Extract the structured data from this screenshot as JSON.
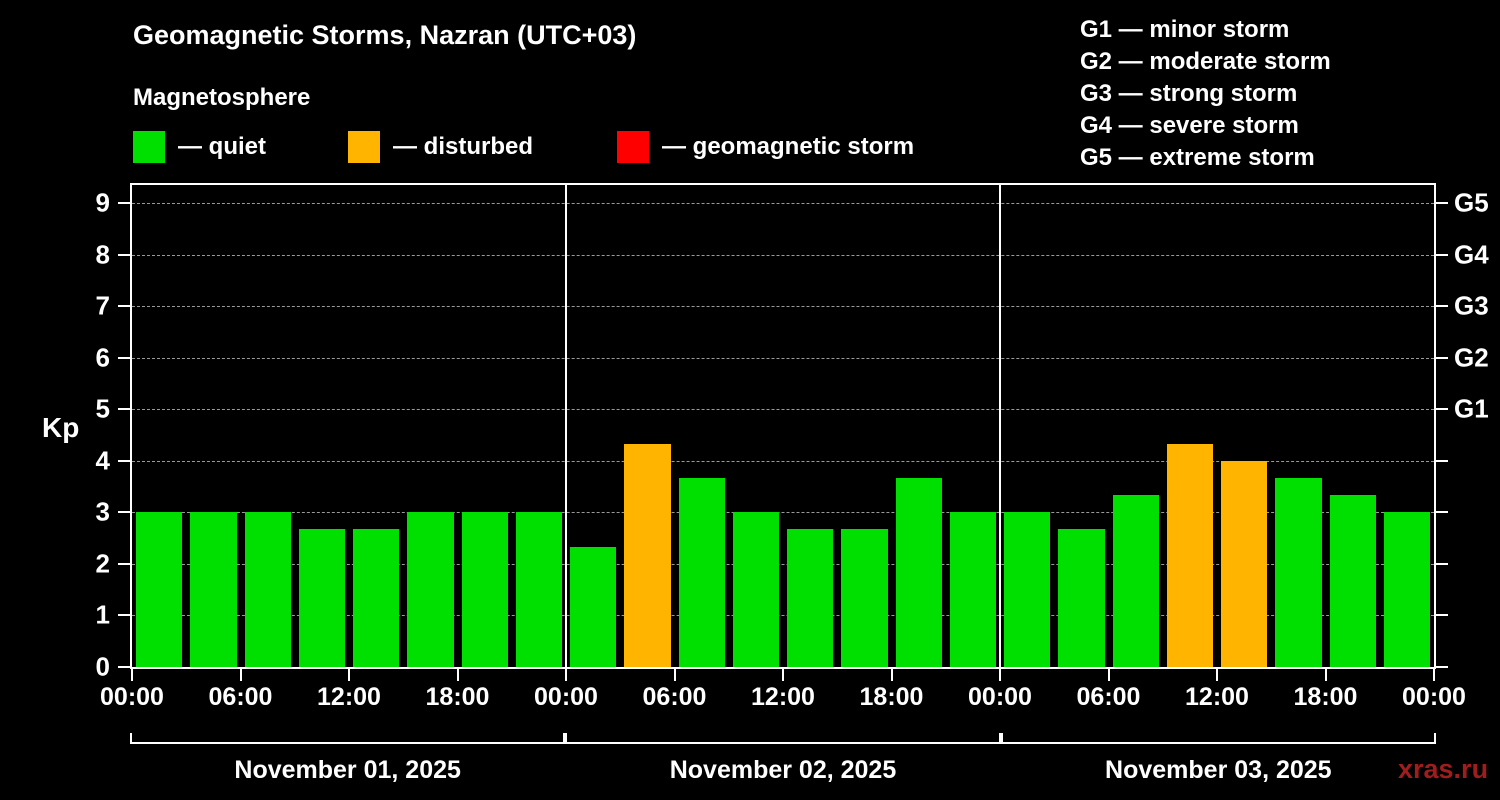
{
  "title": "Geomagnetic Storms, Nazran (UTC+03)",
  "subtitle": "Magnetosphere",
  "legend": {
    "items": [
      {
        "name": "quiet",
        "label": "— quiet",
        "color": "#00e000"
      },
      {
        "name": "disturbed",
        "label": "— disturbed",
        "color": "#ffb400"
      },
      {
        "name": "storm",
        "label": "— geomagnetic storm",
        "color": "#ff0000"
      }
    ]
  },
  "g_legend": [
    "G1 — minor storm",
    "G2 — moderate storm",
    "G3 — strong storm",
    "G4 — severe storm",
    "G5 — extreme storm"
  ],
  "watermark": "xras.ru",
  "chart_data": {
    "type": "bar",
    "title": "Geomagnetic Storms, Nazran (UTC+03)",
    "ylabel": "Kp",
    "ylim": [
      0,
      9.35
    ],
    "yticks": [
      0,
      1,
      2,
      3,
      4,
      5,
      6,
      7,
      8,
      9
    ],
    "grid": "dashed horizontal lines at Kp 1..9",
    "legend_position": "top",
    "bar_interval_hours": 3,
    "right_axis": [
      {
        "label": "G1",
        "kp": 5
      },
      {
        "label": "G2",
        "kp": 6
      },
      {
        "label": "G3",
        "kp": 7
      },
      {
        "label": "G4",
        "kp": 8
      },
      {
        "label": "G5",
        "kp": 9
      }
    ],
    "x_tick_labels": [
      "00:00",
      "06:00",
      "12:00",
      "18:00",
      "00:00",
      "06:00",
      "12:00",
      "18:00",
      "00:00",
      "06:00",
      "12:00",
      "18:00",
      "00:00"
    ],
    "colors": {
      "quiet": "#00e000",
      "disturbed": "#ffb400",
      "storm": "#ff0000"
    },
    "color_rules": {
      "quiet_kp_below": 4,
      "disturbed_kp_from": 4,
      "storm_kp_from": 5
    },
    "days": [
      {
        "date": "November 01, 2025",
        "values": [
          3,
          3,
          3,
          2.67,
          2.67,
          3,
          3,
          3
        ]
      },
      {
        "date": "November 02, 2025",
        "values": [
          2.33,
          4.33,
          3.67,
          3,
          2.67,
          2.67,
          3.67,
          3
        ]
      },
      {
        "date": "November 03, 2025",
        "values": [
          3,
          2.67,
          3.33,
          4.33,
          4,
          3.67,
          3.33,
          3
        ]
      }
    ]
  }
}
